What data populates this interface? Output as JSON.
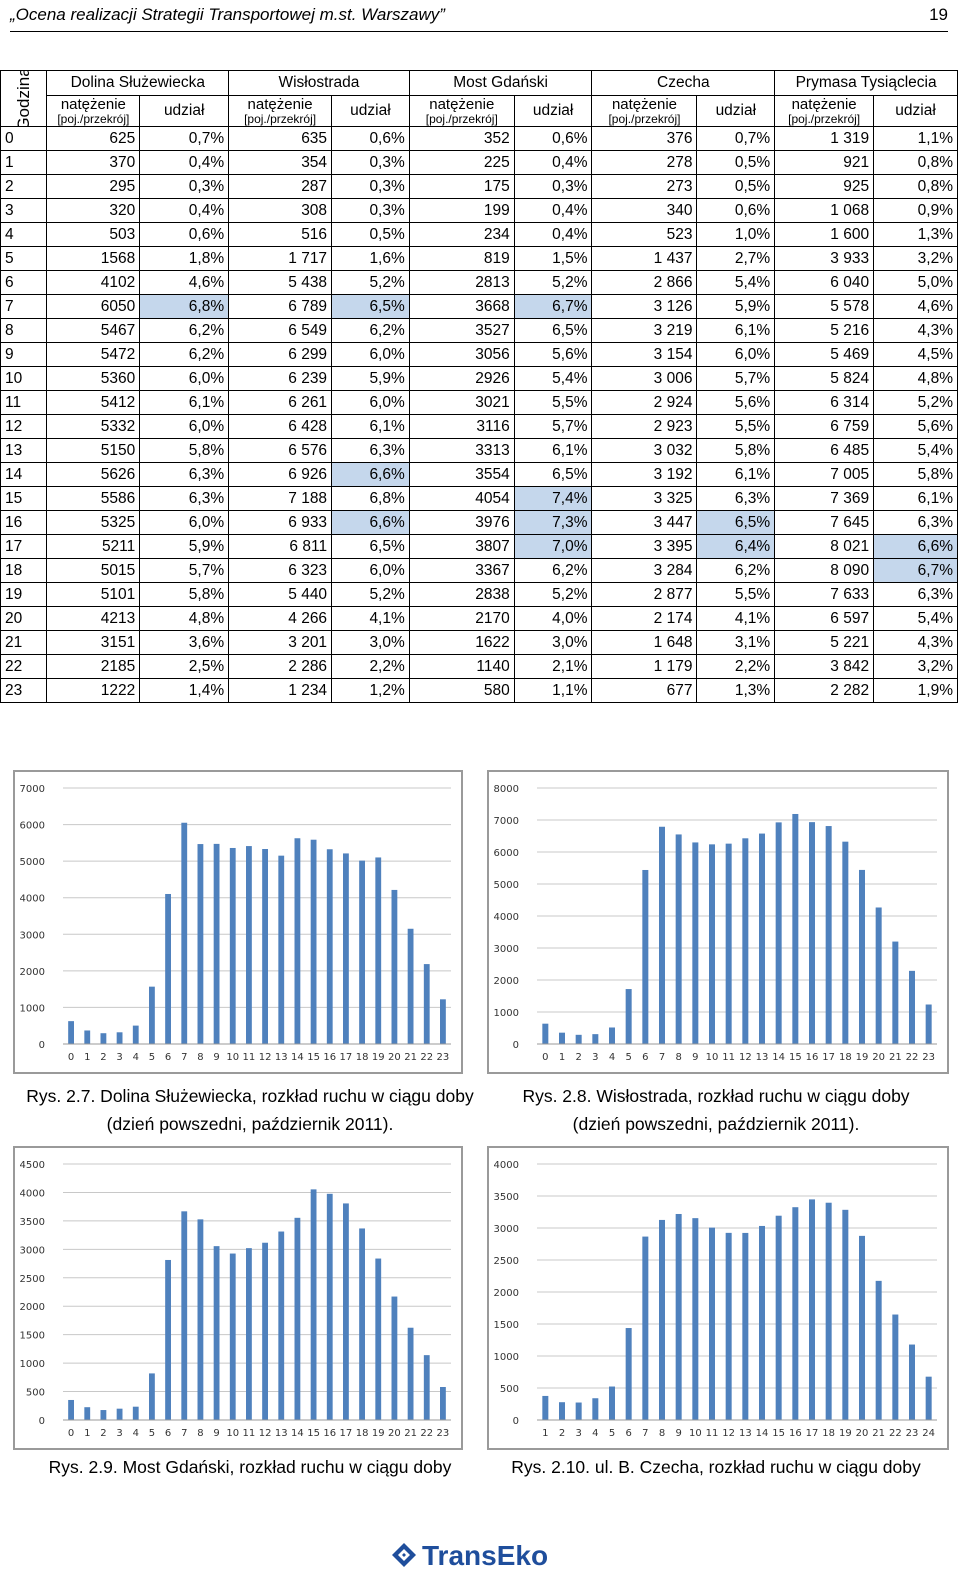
{
  "header": {
    "title": "„Ocena realizacji Strategii Transportowej m.st. Warszawy”",
    "page": "19"
  },
  "table": {
    "hour_header": "Godzina",
    "locations": [
      "Dolina Służewiecka",
      "Wisłostrada",
      "Most Gdański",
      "Czecha",
      "Prymasa Tysiąclecia"
    ],
    "sub_volume": "natężenie",
    "sub_unit": "[poj./przekrój]",
    "sub_share": "udział",
    "rows": [
      [
        "0",
        "625",
        "0,7%",
        "635",
        "0,6%",
        "352",
        "0,6%",
        "376",
        "0,7%",
        "1 319",
        "1,1%"
      ],
      [
        "1",
        "370",
        "0,4%",
        "354",
        "0,3%",
        "225",
        "0,4%",
        "278",
        "0,5%",
        "921",
        "0,8%"
      ],
      [
        "2",
        "295",
        "0,3%",
        "287",
        "0,3%",
        "175",
        "0,3%",
        "273",
        "0,5%",
        "925",
        "0,8%"
      ],
      [
        "3",
        "320",
        "0,4%",
        "308",
        "0,3%",
        "199",
        "0,4%",
        "340",
        "0,6%",
        "1 068",
        "0,9%"
      ],
      [
        "4",
        "503",
        "0,6%",
        "516",
        "0,5%",
        "234",
        "0,4%",
        "523",
        "1,0%",
        "1 600",
        "1,3%"
      ],
      [
        "5",
        "1568",
        "1,8%",
        "1 717",
        "1,6%",
        "819",
        "1,5%",
        "1 437",
        "2,7%",
        "3 933",
        "3,2%"
      ],
      [
        "6",
        "4102",
        "4,6%",
        "5 438",
        "5,2%",
        "2813",
        "5,2%",
        "2 866",
        "5,4%",
        "6 040",
        "5,0%"
      ],
      [
        "7",
        "6050",
        "6,8%",
        "6 789",
        "6,5%",
        "3668",
        "6,7%",
        "3 126",
        "5,9%",
        "5 578",
        "4,6%"
      ],
      [
        "8",
        "5467",
        "6,2%",
        "6 549",
        "6,2%",
        "3527",
        "6,5%",
        "3 219",
        "6,1%",
        "5 216",
        "4,3%"
      ],
      [
        "9",
        "5472",
        "6,2%",
        "6 299",
        "6,0%",
        "3056",
        "5,6%",
        "3 154",
        "6,0%",
        "5 469",
        "4,5%"
      ],
      [
        "10",
        "5360",
        "6,0%",
        "6 239",
        "5,9%",
        "2926",
        "5,4%",
        "3 006",
        "5,7%",
        "5 824",
        "4,8%"
      ],
      [
        "11",
        "5412",
        "6,1%",
        "6 261",
        "6,0%",
        "3021",
        "5,5%",
        "2 924",
        "5,6%",
        "6 314",
        "5,2%"
      ],
      [
        "12",
        "5332",
        "6,0%",
        "6 428",
        "6,1%",
        "3116",
        "5,7%",
        "2 923",
        "5,5%",
        "6 759",
        "5,6%"
      ],
      [
        "13",
        "5150",
        "5,8%",
        "6 576",
        "6,3%",
        "3313",
        "6,1%",
        "3 032",
        "5,8%",
        "6 485",
        "5,4%"
      ],
      [
        "14",
        "5626",
        "6,3%",
        "6 926",
        "6,6%",
        "3554",
        "6,5%",
        "3 192",
        "6,1%",
        "7 005",
        "5,8%"
      ],
      [
        "15",
        "5586",
        "6,3%",
        "7 188",
        "6,8%",
        "4054",
        "7,4%",
        "3 325",
        "6,3%",
        "7 369",
        "6,1%"
      ],
      [
        "16",
        "5325",
        "6,0%",
        "6 933",
        "6,6%",
        "3976",
        "7,3%",
        "3 447",
        "6,5%",
        "7 645",
        "6,3%"
      ],
      [
        "17",
        "5211",
        "5,9%",
        "6 811",
        "6,5%",
        "3807",
        "7,0%",
        "3 395",
        "6,4%",
        "8 021",
        "6,6%"
      ],
      [
        "18",
        "5015",
        "5,7%",
        "6 323",
        "6,0%",
        "3367",
        "6,2%",
        "3 284",
        "6,2%",
        "8 090",
        "6,7%"
      ],
      [
        "19",
        "5101",
        "5,8%",
        "5 440",
        "5,2%",
        "2838",
        "5,2%",
        "2 877",
        "5,5%",
        "7 633",
        "6,3%"
      ],
      [
        "20",
        "4213",
        "4,8%",
        "4 266",
        "4,1%",
        "2170",
        "4,0%",
        "2 174",
        "4,1%",
        "6 597",
        "5,4%"
      ],
      [
        "21",
        "3151",
        "3,6%",
        "3 201",
        "3,0%",
        "1622",
        "3,0%",
        "1 648",
        "3,1%",
        "5 221",
        "4,3%"
      ],
      [
        "22",
        "2185",
        "2,5%",
        "2 286",
        "2,2%",
        "1140",
        "2,1%",
        "1 179",
        "2,2%",
        "3 842",
        "3,2%"
      ],
      [
        "23",
        "1222",
        "1,4%",
        "1 234",
        "1,2%",
        "580",
        "1,1%",
        "677",
        "1,3%",
        "2 282",
        "1,9%"
      ]
    ],
    "highlight_color": "#c5d7ec",
    "highlighted_cells": [
      [
        7,
        2
      ],
      [
        7,
        4
      ],
      [
        7,
        6
      ],
      [
        14,
        4
      ],
      [
        15,
        6
      ],
      [
        16,
        4
      ],
      [
        16,
        6
      ],
      [
        16,
        8
      ],
      [
        17,
        6
      ],
      [
        17,
        8
      ],
      [
        17,
        10
      ],
      [
        18,
        10
      ]
    ]
  },
  "chart_data": [
    {
      "type": "bar",
      "title": "",
      "categories": [
        "0",
        "1",
        "2",
        "3",
        "4",
        "5",
        "6",
        "7",
        "8",
        "9",
        "10",
        "11",
        "12",
        "13",
        "14",
        "15",
        "16",
        "17",
        "18",
        "19",
        "20",
        "21",
        "22",
        "23"
      ],
      "values": [
        625,
        370,
        295,
        320,
        503,
        1568,
        4102,
        6050,
        5467,
        5472,
        5360,
        5412,
        5332,
        5150,
        5626,
        5586,
        5325,
        5211,
        5015,
        5101,
        4213,
        3151,
        2185,
        1222
      ],
      "ylim": [
        0,
        7000
      ],
      "yticks": [
        "0",
        "1000",
        "2000",
        "3000",
        "4000",
        "5000",
        "6000",
        "7000"
      ],
      "grid": true,
      "color": "#4f81bd"
    },
    {
      "type": "bar",
      "title": "",
      "categories": [
        "0",
        "1",
        "2",
        "3",
        "4",
        "5",
        "6",
        "7",
        "8",
        "9",
        "10",
        "11",
        "12",
        "13",
        "14",
        "15",
        "16",
        "17",
        "18",
        "19",
        "20",
        "21",
        "22",
        "23"
      ],
      "values": [
        635,
        354,
        287,
        308,
        516,
        1717,
        5438,
        6789,
        6549,
        6299,
        6239,
        6261,
        6428,
        6576,
        6926,
        7188,
        6933,
        6811,
        6323,
        5440,
        4266,
        3201,
        2286,
        1234
      ],
      "ylim": [
        0,
        8000
      ],
      "yticks": [
        "0",
        "1000",
        "2000",
        "3000",
        "4000",
        "5000",
        "6000",
        "7000",
        "8000"
      ],
      "grid": true,
      "color": "#4f81bd"
    },
    {
      "type": "bar",
      "title": "",
      "categories": [
        "0",
        "1",
        "2",
        "3",
        "4",
        "5",
        "6",
        "7",
        "8",
        "9",
        "10",
        "11",
        "12",
        "13",
        "14",
        "15",
        "16",
        "17",
        "18",
        "19",
        "20",
        "21",
        "22",
        "23"
      ],
      "values": [
        352,
        225,
        175,
        199,
        234,
        819,
        2813,
        3668,
        3527,
        3056,
        2926,
        3021,
        3116,
        3313,
        3554,
        4054,
        3976,
        3807,
        3367,
        2838,
        2170,
        1622,
        1140,
        580
      ],
      "ylim": [
        0,
        4500
      ],
      "yticks": [
        "0",
        "500",
        "1000",
        "1500",
        "2000",
        "2500",
        "3000",
        "3500",
        "4000",
        "4500"
      ],
      "grid": true,
      "color": "#4f81bd"
    },
    {
      "type": "bar",
      "title": "",
      "categories": [
        "1",
        "2",
        "3",
        "4",
        "5",
        "6",
        "7",
        "8",
        "9",
        "10",
        "11",
        "12",
        "13",
        "14",
        "15",
        "16",
        "17",
        "18",
        "19",
        "20",
        "21",
        "22",
        "23",
        "24"
      ],
      "values": [
        376,
        278,
        273,
        340,
        523,
        1437,
        2866,
        3126,
        3219,
        3154,
        3006,
        2924,
        2923,
        3032,
        3192,
        3325,
        3447,
        3395,
        3284,
        2877,
        2174,
        1648,
        1179,
        677
      ],
      "ylim": [
        0,
        4000
      ],
      "yticks": [
        "0",
        "500",
        "1000",
        "1500",
        "2000",
        "2500",
        "3000",
        "3500",
        "4000"
      ],
      "grid": true,
      "color": "#4f81bd"
    }
  ],
  "captions": [
    {
      "line1": "Rys. 2.7. Dolina Służewiecka, rozkład ruchu w ciągu doby",
      "line2": "(dzień powszedni, październik 2011)."
    },
    {
      "line1": "Rys. 2.8. Wisłostrada, rozkład ruchu w ciągu doby",
      "line2": "(dzień powszedni, październik 2011)."
    },
    {
      "line1": "Rys. 2.9. Most Gdański, rozkład ruchu w ciągu doby",
      "line2": ""
    },
    {
      "line1": "Rys. 2.10. ul. B. Czecha, rozkład ruchu w ciągu doby",
      "line2": ""
    }
  ],
  "logo": {
    "text": "TransEko",
    "color": "#1f4e9c"
  }
}
